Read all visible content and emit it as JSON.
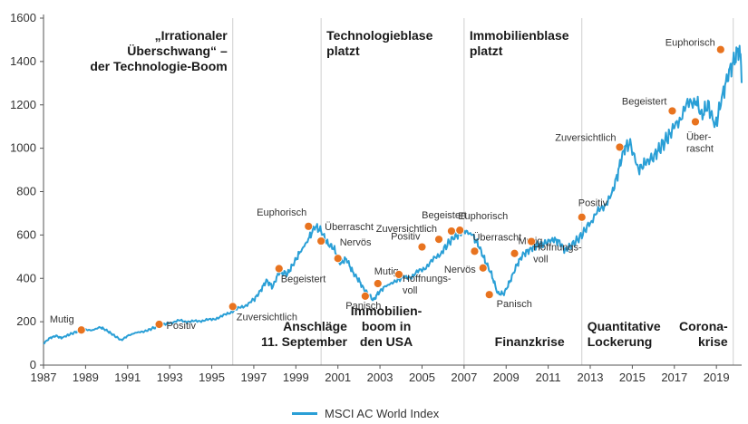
{
  "chart_data": {
    "type": "line",
    "xlim": [
      1987,
      2020.2
    ],
    "ylim": [
      0,
      1600
    ],
    "xticks": [
      "1987",
      "1989",
      "1991",
      "1993",
      "1995",
      "1997",
      "1999",
      "2001",
      "2003",
      "2005",
      "2007",
      "2009",
      "2011",
      "2013",
      "2015",
      "2017",
      "2019"
    ],
    "yticks": [
      "0",
      "200",
      "400",
      "600",
      "800",
      "1000",
      "1200",
      "1400",
      "1600"
    ],
    "grid": false,
    "legend": "bottom-center",
    "series": [
      {
        "name": "MSCI AC World Index",
        "color": "#2a9fd6",
        "x": [
          1987.0,
          1987.3,
          1987.6,
          1987.85,
          1988.2,
          1988.6,
          1988.9,
          1989.3,
          1989.7,
          1990.0,
          1990.3,
          1990.7,
          1991.0,
          1991.4,
          1991.8,
          1992.2,
          1992.6,
          1993.0,
          1993.5,
          1994.0,
          1994.5,
          1995.0,
          1995.5,
          1996.0,
          1996.5,
          1997.0,
          1997.3,
          1997.6,
          1997.9,
          1998.2,
          1998.6,
          1998.9,
          1999.2,
          1999.6,
          1999.9,
          2000.2,
          2000.5,
          2000.8,
          2001.1,
          2001.4,
          2001.7,
          2002.0,
          2002.3,
          2002.7,
          2002.9,
          2003.2,
          2003.6,
          2004.0,
          2004.5,
          2005.0,
          2005.5,
          2006.0,
          2006.4,
          2006.7,
          2007.0,
          2007.4,
          2007.7,
          2008.0,
          2008.3,
          2008.6,
          2008.9,
          2009.2,
          2009.5,
          2009.8,
          2010.1,
          2010.4,
          2010.8,
          2011.2,
          2011.5,
          2011.8,
          2012.2,
          2012.6,
          2013.0,
          2013.5,
          2014.0,
          2014.3,
          2014.6,
          2014.9,
          2015.3,
          2015.6,
          2016.0,
          2016.3,
          2016.7,
          2017.0,
          2017.5,
          2018.0,
          2018.3,
          2018.6,
          2018.95,
          2019.3,
          2019.6,
          2019.9,
          2020.1,
          2020.3,
          2020.5,
          2020.8,
          2021.0
        ],
        "values": [
          100,
          125,
          135,
          125,
          140,
          155,
          165,
          160,
          175,
          160,
          140,
          115,
          135,
          150,
          155,
          170,
          185,
          195,
          205,
          200,
          205,
          210,
          225,
          250,
          270,
          300,
          340,
          390,
          360,
          430,
          420,
          470,
          520,
          580,
          640,
          620,
          560,
          540,
          470,
          490,
          430,
          390,
          340,
          300,
          330,
          360,
          380,
          400,
          410,
          440,
          480,
          530,
          580,
          600,
          620,
          600,
          550,
          480,
          420,
          330,
          330,
          390,
          460,
          510,
          530,
          550,
          560,
          580,
          570,
          530,
          560,
          600,
          660,
          720,
          780,
          880,
          1000,
          1020,
          900,
          930,
          960,
          1000,
          1050,
          1100,
          1180,
          1230,
          1150,
          1200,
          1100,
          1250,
          1350,
          1420,
          1460,
          1200,
          1300,
          1400,
          1450
        ]
      }
    ],
    "points": [
      {
        "label": "Mutig",
        "x": 1988.8,
        "y": 162
      },
      {
        "label": "Positiv",
        "x": 1992.5,
        "y": 188
      },
      {
        "label": "Zuversichtlich",
        "x": 1996.0,
        "y": 270
      },
      {
        "label": "Begeistert",
        "x": 1998.2,
        "y": 445
      },
      {
        "label": "Euphorisch",
        "x": 1999.6,
        "y": 640
      },
      {
        "label": "Überrascht",
        "x": 2000.2,
        "y": 572
      },
      {
        "label": "Nervös",
        "x": 2001.0,
        "y": 492
      },
      {
        "label": "Panisch",
        "x": 2002.3,
        "y": 318
      },
      {
        "label": "Mutig",
        "x": 2002.9,
        "y": 376
      },
      {
        "label": "Hoffnungs-voll",
        "x": 2003.9,
        "y": 418
      },
      {
        "label": "Positiv",
        "x": 2005.0,
        "y": 545
      },
      {
        "label": "Zuversichtlich",
        "x": 2005.8,
        "y": 580
      },
      {
        "label": "Begeistert",
        "x": 2006.4,
        "y": 618
      },
      {
        "label": "Euphorisch",
        "x": 2006.8,
        "y": 622
      },
      {
        "label": "Überrascht",
        "x": 2007.5,
        "y": 525
      },
      {
        "label": "Nervös",
        "x": 2007.9,
        "y": 448
      },
      {
        "label": "Panisch",
        "x": 2008.2,
        "y": 325
      },
      {
        "label": "Mutig",
        "x": 2009.4,
        "y": 515
      },
      {
        "label": "Hoffnungs-voll",
        "x": 2010.2,
        "y": 570
      },
      {
        "label": "Positiv",
        "x": 2012.6,
        "y": 682
      },
      {
        "label": "Zuversichtlich",
        "x": 2014.4,
        "y": 1005
      },
      {
        "label": "Begeistert",
        "x": 2016.9,
        "y": 1172
      },
      {
        "label": "Über-rascht",
        "x": 2018.0,
        "y": 1122
      },
      {
        "label": "Euphorisch",
        "x": 2019.2,
        "y": 1455
      }
    ],
    "annotations": [
      {
        "text": [
          "„Irrationaler",
          "Überschwang“ –",
          "der Technologie-Boom"
        ],
        "x": 1996.0,
        "align": "right",
        "position": "top"
      },
      {
        "text": [
          "Technologieblase",
          "platzt"
        ],
        "x": 2000.2,
        "align": "left",
        "position": "top"
      },
      {
        "text": [
          "Immobilienblase",
          "platzt"
        ],
        "x": 2007.0,
        "align": "left",
        "position": "top"
      },
      {
        "text": [
          "Anschläge",
          "11. September"
        ],
        "x": 2001.7,
        "align": "right",
        "position": "bottom"
      },
      {
        "text": [
          "Immobilien-",
          "boom in",
          "den USA"
        ],
        "x": 2003.3,
        "align": "center",
        "position": "bottom"
      },
      {
        "text": [
          "Finanzkrise"
        ],
        "x": 2008.2,
        "align": "left",
        "position": "bottom"
      },
      {
        "text": [
          "Quantitative",
          "Lockerung"
        ],
        "x": 2012.6,
        "align": "left",
        "position": "bottom"
      },
      {
        "text": [
          "Corona-",
          "krise"
        ],
        "x": 2019.8,
        "align": "right",
        "position": "bottom"
      }
    ],
    "vlines": [
      1996.0,
      2000.2,
      2007.0,
      2012.6,
      2019.8
    ]
  }
}
